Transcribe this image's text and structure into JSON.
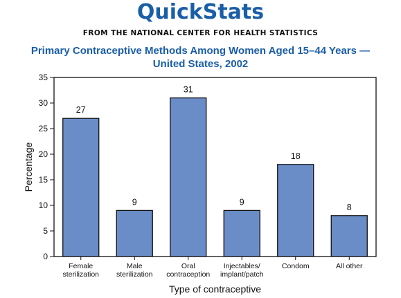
{
  "header": {
    "brand": "QuickStats",
    "source": "FROM THE NATIONAL CENTER FOR HEALTH STATISTICS"
  },
  "chart_data": {
    "type": "bar",
    "title_lines": [
      "Primary Contraceptive Methods Among Women Aged 15–44 Years —",
      "United States, 2002"
    ],
    "categories": [
      [
        "Female",
        "sterilization"
      ],
      [
        "Male",
        "sterilization"
      ],
      [
        "Oral",
        "contraception"
      ],
      [
        "Injectables/",
        "implant/patch"
      ],
      [
        "Condom"
      ],
      [
        "All other"
      ]
    ],
    "values": [
      27,
      9,
      31,
      9,
      18,
      8
    ],
    "value_labels": [
      "27",
      "9",
      "31",
      "9",
      "18",
      "8"
    ],
    "xlabel": "Type of contraceptive",
    "ylabel": "Percentage",
    "ylim": [
      0,
      35
    ],
    "yticks": [
      0,
      5,
      10,
      15,
      20,
      25,
      30,
      35
    ],
    "grid": false,
    "colors": {
      "bar": "#6a8dc8",
      "bar_edge": "#111111",
      "title": "#1a5ea8"
    }
  }
}
